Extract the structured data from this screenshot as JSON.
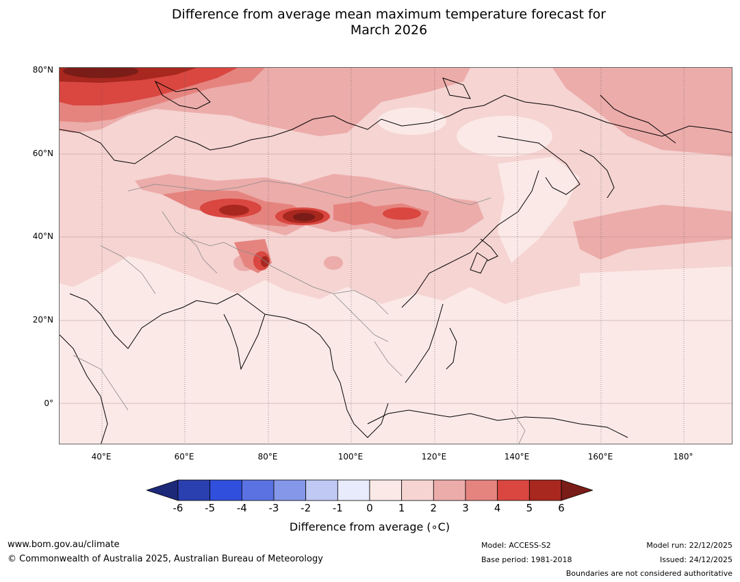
{
  "map": {
    "title_line1": "Difference from average mean maximum temperature forecast for",
    "title_line2": "March 2026",
    "lat_labels": [
      "80°N",
      "60°N",
      "40°N",
      "20°N",
      "0°"
    ],
    "lon_labels": [
      "40°E",
      "60°E",
      "80°E",
      "100°E",
      "120°E",
      "140°E",
      "160°E",
      "180°"
    ]
  },
  "colorbar": {
    "ticks": [
      "-6",
      "-5",
      "-4",
      "-3",
      "-2",
      "-1",
      "0",
      "1",
      "2",
      "3",
      "4",
      "5",
      "6"
    ],
    "colors": [
      "#1c2878",
      "#2a3fb0",
      "#304fdc",
      "#5b72e2",
      "#8597e8",
      "#c0c8f4",
      "#e8ebfb",
      "#fbe9e8",
      "#f5d4d2",
      "#ecacaa",
      "#e5847f",
      "#d94740",
      "#a8271f",
      "#7a1c17"
    ],
    "label": "Difference from average (∘C)"
  },
  "footer": {
    "website": "www.bom.gov.au/climate",
    "copyright": "© Commonwealth of Australia 2025, Australian Bureau of Meteorology",
    "model": "Model: ACCESS-S2",
    "base_period": "Base period: 1981-2018",
    "model_run": "Model run: 22/12/2025",
    "issued": "Issued: 24/12/2025",
    "disclaimer": "Boundaries are not considered authoritative"
  }
}
